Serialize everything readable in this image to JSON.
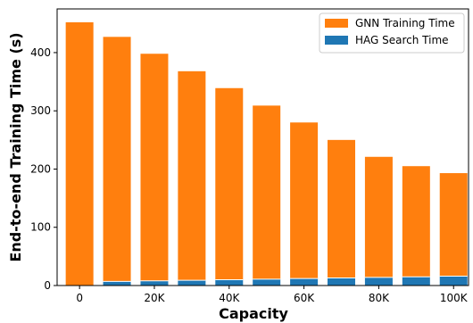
{
  "chart_data": {
    "type": "bar",
    "stacked": true,
    "x": [
      0,
      10000,
      20000,
      30000,
      40000,
      50000,
      60000,
      70000,
      80000,
      90000,
      100000
    ],
    "series": [
      {
        "name": "HAG Search Time",
        "color": "#1f77b4",
        "values": [
          0,
          7,
          8,
          9,
          10,
          11,
          12,
          13,
          14,
          15,
          16
        ]
      },
      {
        "name": "GNN Training Time",
        "color": "#ff7f0e",
        "values": [
          452,
          420,
          390,
          359,
          329,
          298,
          268,
          237,
          207,
          190,
          177
        ]
      }
    ],
    "xticks": [
      0,
      20000,
      40000,
      60000,
      80000,
      100000
    ],
    "xtick_labels": [
      "0",
      "20K",
      "40K",
      "60K",
      "80K",
      "100K"
    ],
    "yticks": [
      0,
      100,
      200,
      300,
      400
    ],
    "xlabel": "Capacity",
    "ylabel": "End-to-end Training Time (s)",
    "xlim": [
      -6000,
      104000
    ],
    "ylim": [
      0,
      475
    ],
    "legend_position": "top-right",
    "grid": false
  }
}
